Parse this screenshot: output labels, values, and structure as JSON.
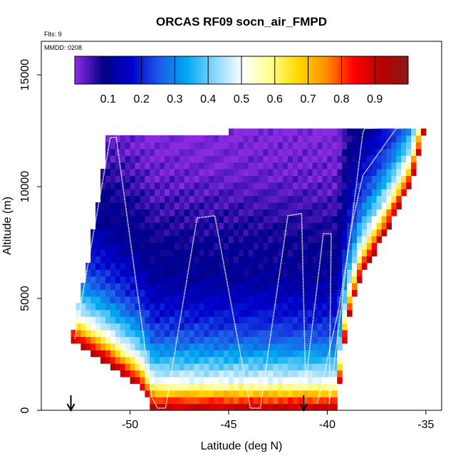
{
  "chart_data": {
    "type": "heatmap",
    "title": "ORCAS RF09 socn_air_FMPD",
    "top_left_note": "Flts: 9",
    "inset_note": "MMDD: 0208",
    "xlabel": "Latitude (deg N)",
    "ylabel": "Altitude (m)",
    "xlim": [
      -54.5,
      -34.2
    ],
    "ylim": [
      0,
      16500
    ],
    "xticks": [
      -50,
      -45,
      -40,
      -35
    ],
    "xtick_labels": [
      "-50",
      "-45",
      "-40",
      "-35"
    ],
    "yticks": [
      0,
      5000,
      10000,
      15000
    ],
    "ytick_labels": [
      "0",
      "5000",
      "10000",
      "15000"
    ],
    "colorbar": {
      "range": [
        0,
        1
      ],
      "ticks": [
        0.1,
        0.2,
        0.3,
        0.4,
        0.5,
        0.6,
        0.7,
        0.8,
        0.9
      ],
      "tick_labels": [
        "0.1",
        "0.2",
        "0.3",
        "0.4",
        "0.5",
        "0.6",
        "0.7",
        "0.8",
        "0.9"
      ],
      "colors": [
        "#8a2be2",
        "#000088",
        "#0000cd",
        "#1e5ae6",
        "#00a8f0",
        "#87d7ff",
        "#ffffff",
        "#ffff90",
        "#ffd800",
        "#ff9000",
        "#ff0000",
        "#b80000",
        "#8b1a1a"
      ]
    },
    "domain_outline": {
      "lat_left": [
        -53.0,
        -52.6,
        -52.2,
        -51.9,
        -51.6,
        -51.3,
        -51.1
      ],
      "alt_left": [
        3100,
        4800,
        6300,
        7900,
        9400,
        11100,
        12400
      ],
      "top_lat": [
        -51.1,
        -45.0,
        -44.8,
        -38.6,
        -35.0
      ],
      "top_alt": [
        12300,
        12300,
        12600,
        12600,
        12600
      ],
      "right_lat": [
        -35.0,
        -35.8,
        -37.0,
        -38.3,
        -39.0,
        -39.3,
        -39.5
      ],
      "right_alt": [
        12600,
        10000,
        8000,
        6000,
        3800,
        1800,
        0
      ],
      "bottom_lat": [
        -39.5,
        -48.8,
        -49.5,
        -51.3,
        -53.0
      ],
      "bottom_alt": [
        0,
        0,
        1000,
        2200,
        3100
      ]
    },
    "flight_track": {
      "lat": [
        -52.8,
        -51.0,
        -50.7,
        -48.9,
        -48.6,
        -48.2,
        -46.6,
        -45.7,
        -43.9,
        -43.4,
        -42.0,
        -41.3,
        -41.1,
        -40.2,
        -39.8,
        -39.9,
        -38.2,
        -38.1,
        -36.1,
        -35.0
      ],
      "alt": [
        3200,
        12200,
        12200,
        600,
        100,
        100,
        8600,
        8700,
        100,
        100,
        8700,
        8800,
        1200,
        7900,
        7900,
        300,
        12400,
        12600,
        12650,
        12700
      ]
    },
    "flight_track_2": {
      "lat": [
        -40.5,
        -39.4,
        -38.7,
        -38.2,
        -36.5,
        -35.8,
        -35.0
      ],
      "alt": [
        300,
        4600,
        8500,
        10500,
        12600,
        12650,
        12700
      ]
    },
    "arrows": [
      {
        "lat": -53.0,
        "label": ""
      },
      {
        "lat": -41.2,
        "label": ""
      }
    ],
    "value_profile": {
      "alt_levels": [
        0,
        300,
        600,
        900,
        1300,
        1800,
        2400,
        3000,
        3800,
        4800,
        6000,
        7500,
        9000,
        10500,
        11500,
        12600
      ],
      "values": [
        0.93,
        0.85,
        0.75,
        0.63,
        0.5,
        0.42,
        0.34,
        0.27,
        0.21,
        0.16,
        0.1,
        0.08,
        0.05,
        0.02,
        0.01,
        0.0
      ]
    }
  }
}
